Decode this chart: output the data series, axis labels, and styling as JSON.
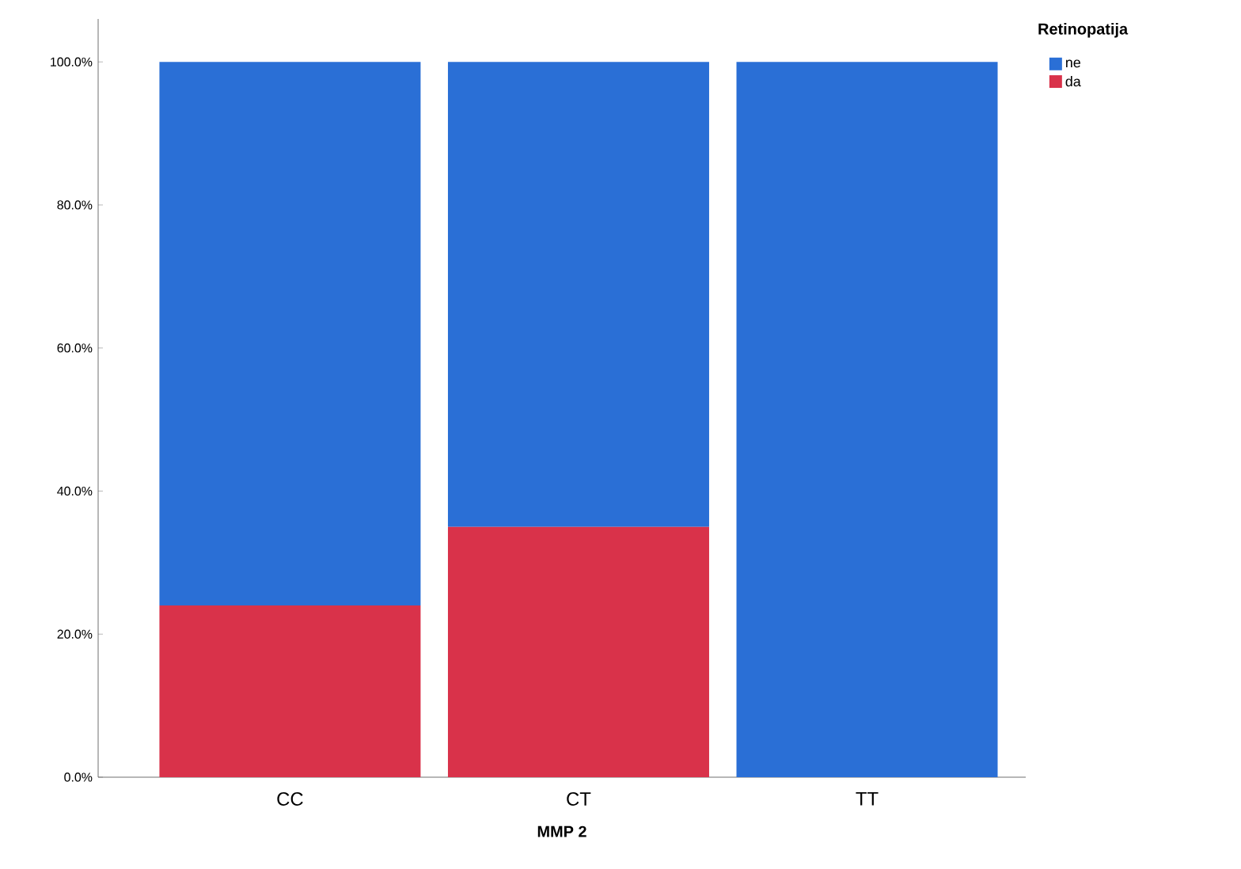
{
  "chart_data": {
    "type": "bar",
    "stacked": true,
    "xlabel": "MMP 2",
    "legend_title": "Retinopatija",
    "legend": "top right",
    "categories": [
      "CC",
      "CT",
      "TT"
    ],
    "series": [
      {
        "name": "da",
        "color": "#d9324a",
        "values": [
          24,
          35,
          0
        ]
      },
      {
        "name": "ne",
        "color": "#2a6fd6",
        "values": [
          76,
          65,
          100
        ]
      }
    ],
    "ylim": [
      0,
      106
    ],
    "yticks": [
      {
        "value": 0,
        "label": "0.0%"
      },
      {
        "value": 20,
        "label": "20.0%"
      },
      {
        "value": 40,
        "label": "40.0%"
      },
      {
        "value": 60,
        "label": "60.0%"
      },
      {
        "value": 80,
        "label": "80.0%"
      },
      {
        "value": 100,
        "label": "100.0%"
      }
    ]
  }
}
